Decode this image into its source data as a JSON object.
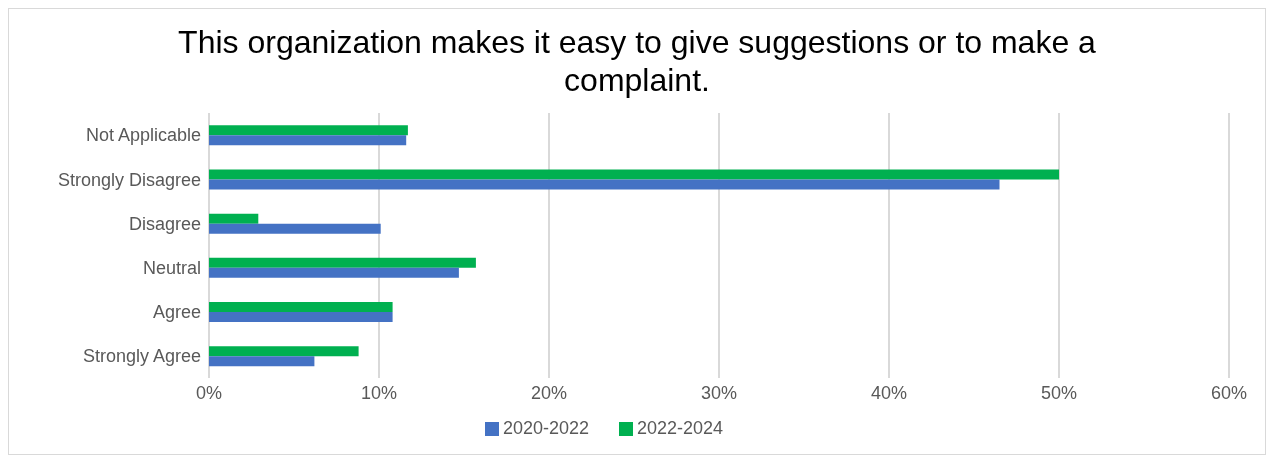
{
  "chart_data": {
    "type": "bar",
    "orientation": "horizontal",
    "title": "This organization makes it easy to give suggestions or to make a complaint.",
    "categories": [
      "Not Applicable",
      "Strongly Disagree",
      "Disagree",
      "Neutral",
      "Agree",
      "Strongly Agree"
    ],
    "series": [
      {
        "name": "2022-2024",
        "color": "#00b050",
        "values": [
          11.7,
          50.0,
          2.9,
          15.7,
          10.8,
          8.8
        ]
      },
      {
        "name": "2020-2022",
        "color": "#4472c4",
        "values": [
          11.6,
          46.5,
          10.1,
          14.7,
          10.8,
          6.2
        ]
      }
    ],
    "xlim": [
      0,
      60
    ],
    "xticks": [
      {
        "value": 0,
        "label": "0%"
      },
      {
        "value": 10,
        "label": "10%"
      },
      {
        "value": 20,
        "label": "20%"
      },
      {
        "value": 30,
        "label": "30%"
      },
      {
        "value": 40,
        "label": "40%"
      },
      {
        "value": 50,
        "label": "50%"
      },
      {
        "value": 60,
        "label": "60%"
      }
    ],
    "grid": "x",
    "legend": "bottom"
  }
}
